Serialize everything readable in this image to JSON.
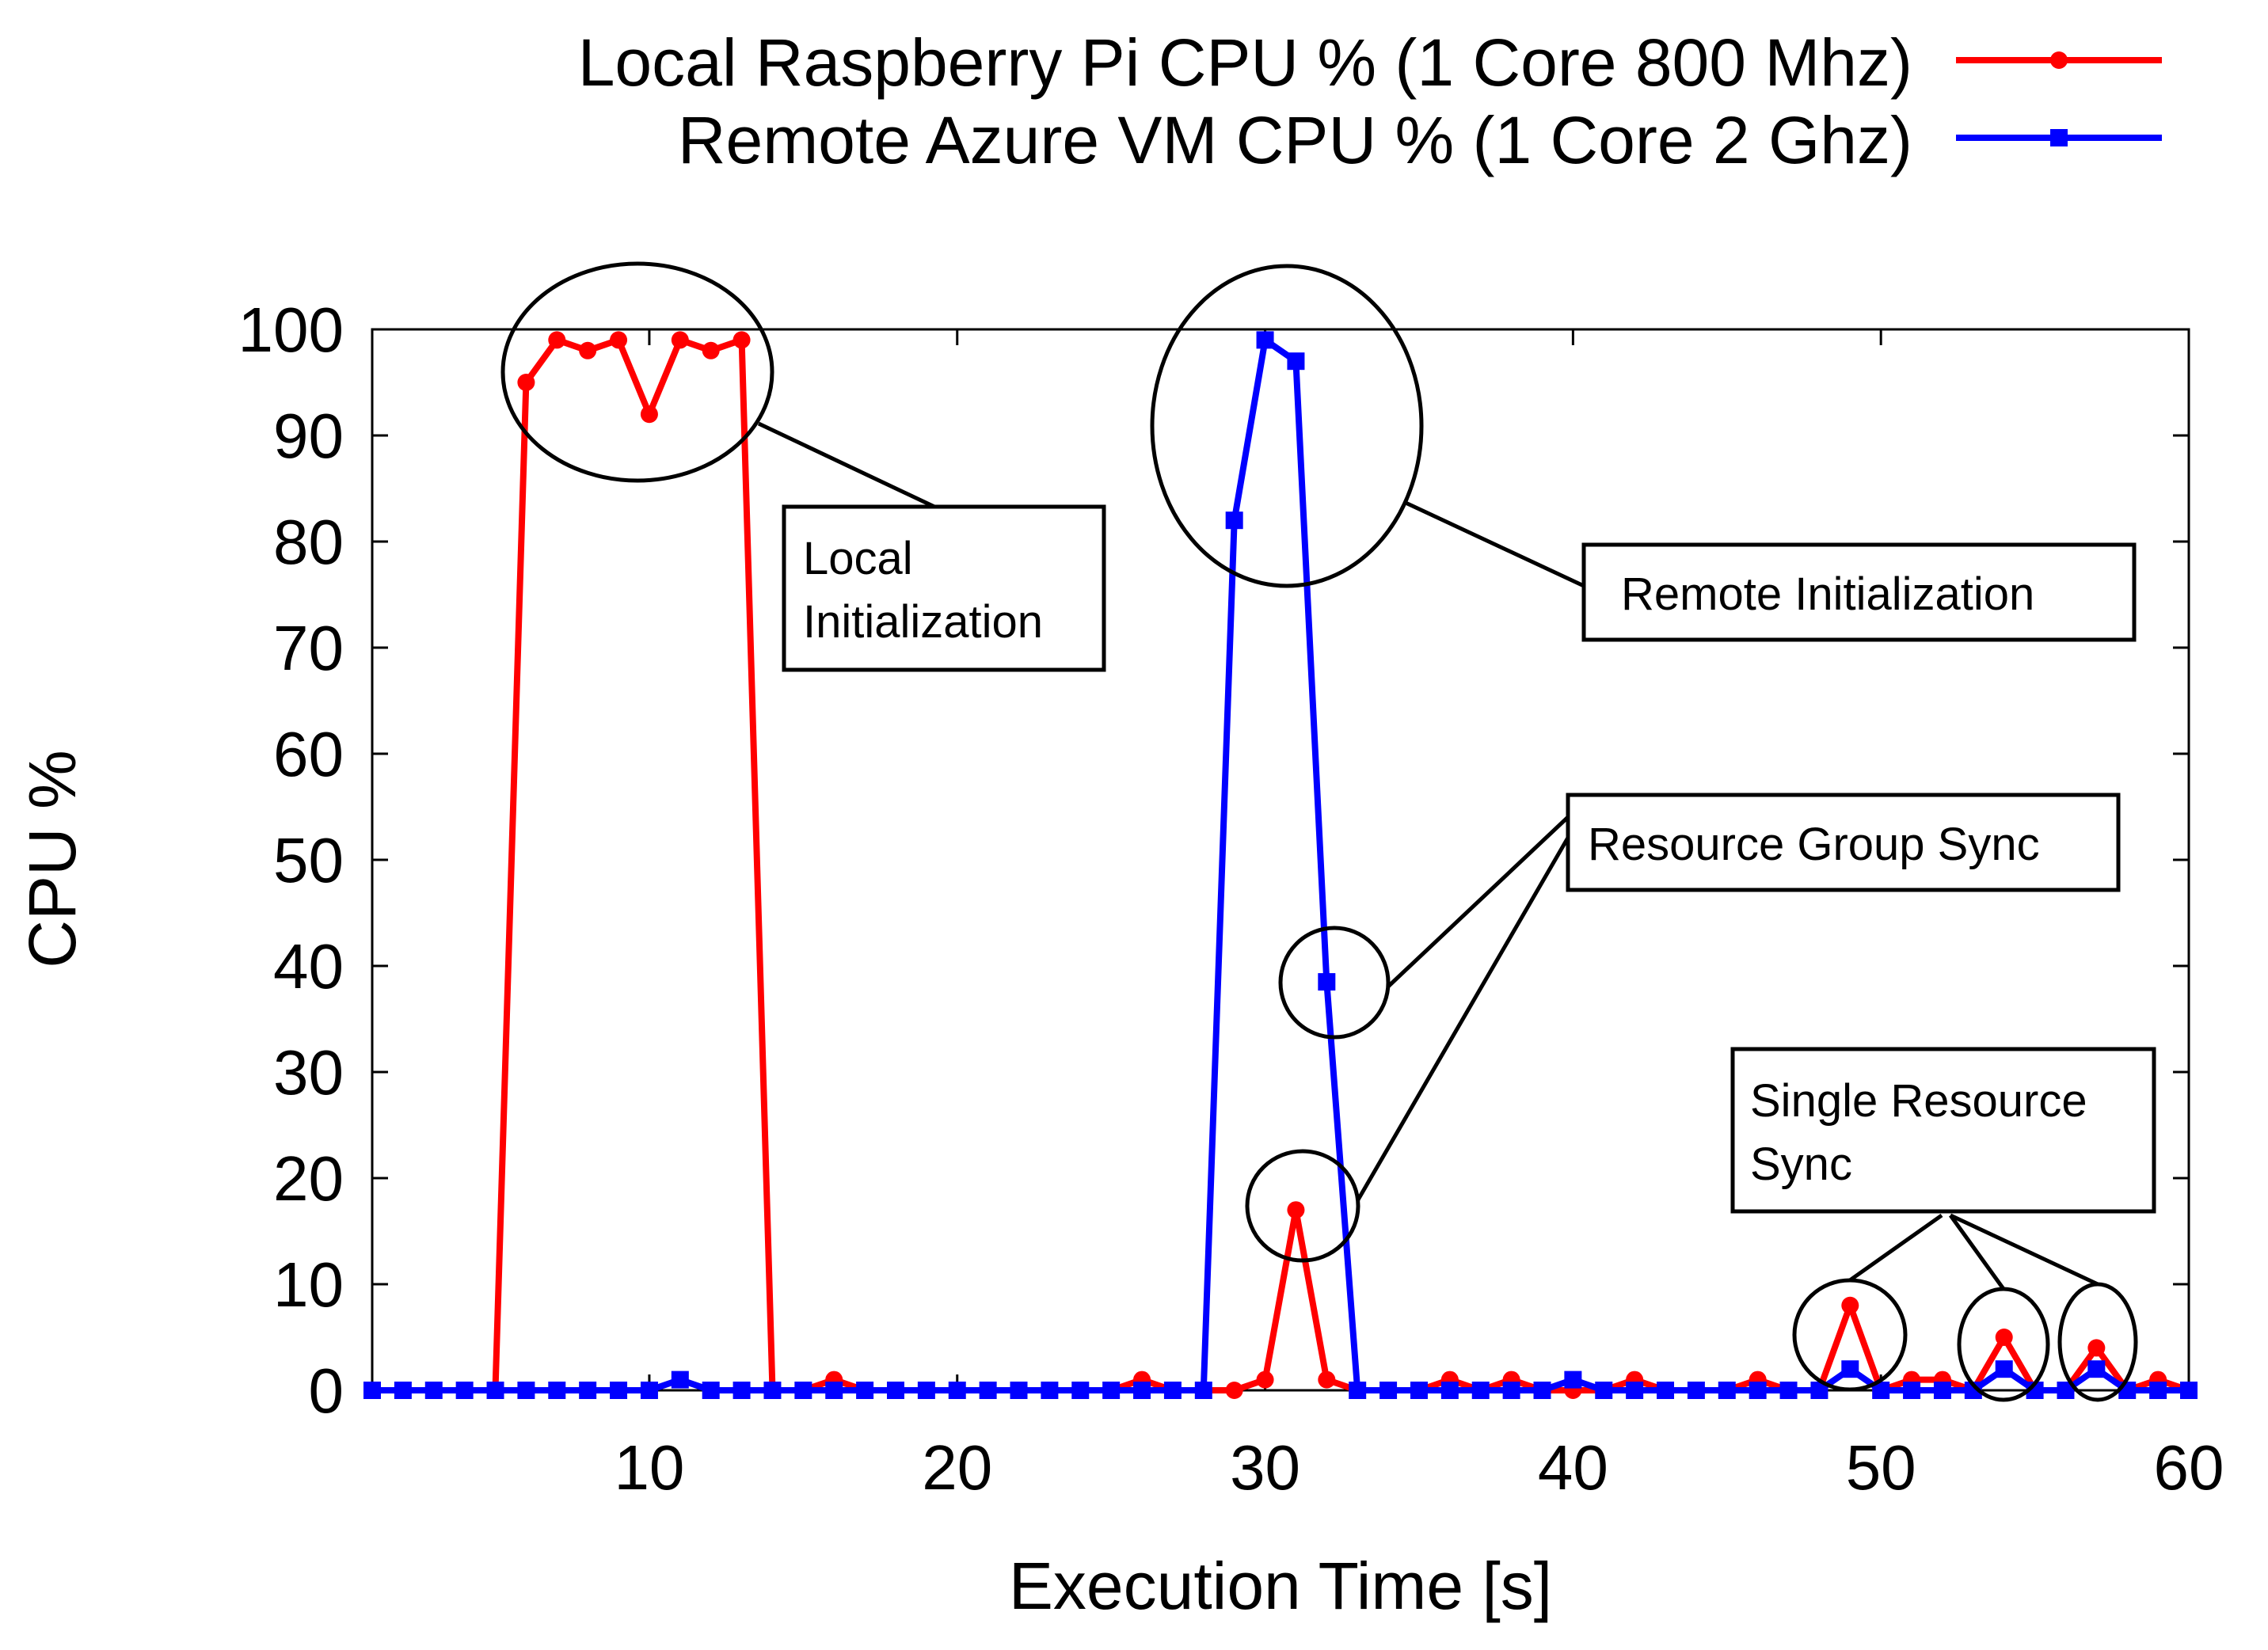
{
  "chart_data": {
    "type": "line",
    "title": "",
    "xlabel": "Execution Time [s]",
    "ylabel": "CPU %",
    "xlim": [
      1,
      60
    ],
    "ylim": [
      0,
      100
    ],
    "xticks": [
      10,
      20,
      30,
      40,
      50,
      60
    ],
    "yticks": [
      0,
      10,
      20,
      30,
      40,
      50,
      60,
      70,
      80,
      90,
      100
    ],
    "grid": false,
    "legend_position": "top-right",
    "series": [
      {
        "name": "Local Raspberry Pi CPU % (1 Core 800 Mhz)",
        "color": "#ff0000",
        "marker": "circle",
        "x": [
          1,
          2,
          3,
          4,
          5,
          6,
          7,
          8,
          9,
          10,
          11,
          12,
          13,
          14,
          15,
          16,
          17,
          18,
          19,
          20,
          21,
          22,
          23,
          24,
          25,
          26,
          27,
          28,
          29,
          30,
          31,
          32,
          33,
          34,
          35,
          36,
          37,
          38,
          39,
          40,
          41,
          42,
          43,
          44,
          45,
          46,
          47,
          48,
          49,
          50,
          51,
          52,
          53,
          54,
          55,
          56,
          57,
          58,
          59,
          60
        ],
        "y": [
          0,
          0,
          0,
          0,
          0,
          95,
          99,
          98,
          99,
          92,
          99,
          98,
          99,
          0,
          0,
          1,
          0,
          0,
          0,
          0,
          0,
          0,
          0,
          0,
          0,
          1,
          0,
          0,
          0,
          1,
          17,
          1,
          0,
          0,
          0,
          1,
          0,
          1,
          0,
          0,
          0,
          1,
          0,
          0,
          0,
          1,
          0,
          0,
          8,
          0,
          1,
          1,
          0,
          5,
          0,
          0,
          4,
          0,
          1,
          0
        ]
      },
      {
        "name": "Remote Azure VM CPU % (1 Core 2 Ghz)",
        "color": "#0000ff",
        "marker": "square",
        "x": [
          1,
          2,
          3,
          4,
          5,
          6,
          7,
          8,
          9,
          10,
          11,
          12,
          13,
          14,
          15,
          16,
          17,
          18,
          19,
          20,
          21,
          22,
          23,
          24,
          25,
          26,
          27,
          28,
          29,
          30,
          31,
          32,
          33,
          34,
          35,
          36,
          37,
          38,
          39,
          40,
          41,
          42,
          43,
          44,
          45,
          46,
          47,
          48,
          49,
          50,
          51,
          52,
          53,
          54,
          55,
          56,
          57,
          58,
          59,
          60
        ],
        "y": [
          0,
          0,
          0,
          0,
          0,
          0,
          0,
          0,
          0,
          0,
          1,
          0,
          0,
          0,
          0,
          0,
          0,
          0,
          0,
          0,
          0,
          0,
          0,
          0,
          0,
          0,
          0,
          0,
          82,
          99,
          97,
          38.5,
          0,
          0,
          0,
          0,
          0,
          0,
          0,
          1,
          0,
          0,
          0,
          0,
          0,
          0,
          0,
          0,
          2,
          0,
          0,
          0,
          0,
          2,
          0,
          0,
          2,
          0,
          0,
          0
        ]
      }
    ],
    "annotations": [
      {
        "text": "Local\nInitialization"
      },
      {
        "text": "Remote Initialization"
      },
      {
        "text": "Resource Group Sync"
      },
      {
        "text": "Single Resource\nSync"
      }
    ]
  }
}
